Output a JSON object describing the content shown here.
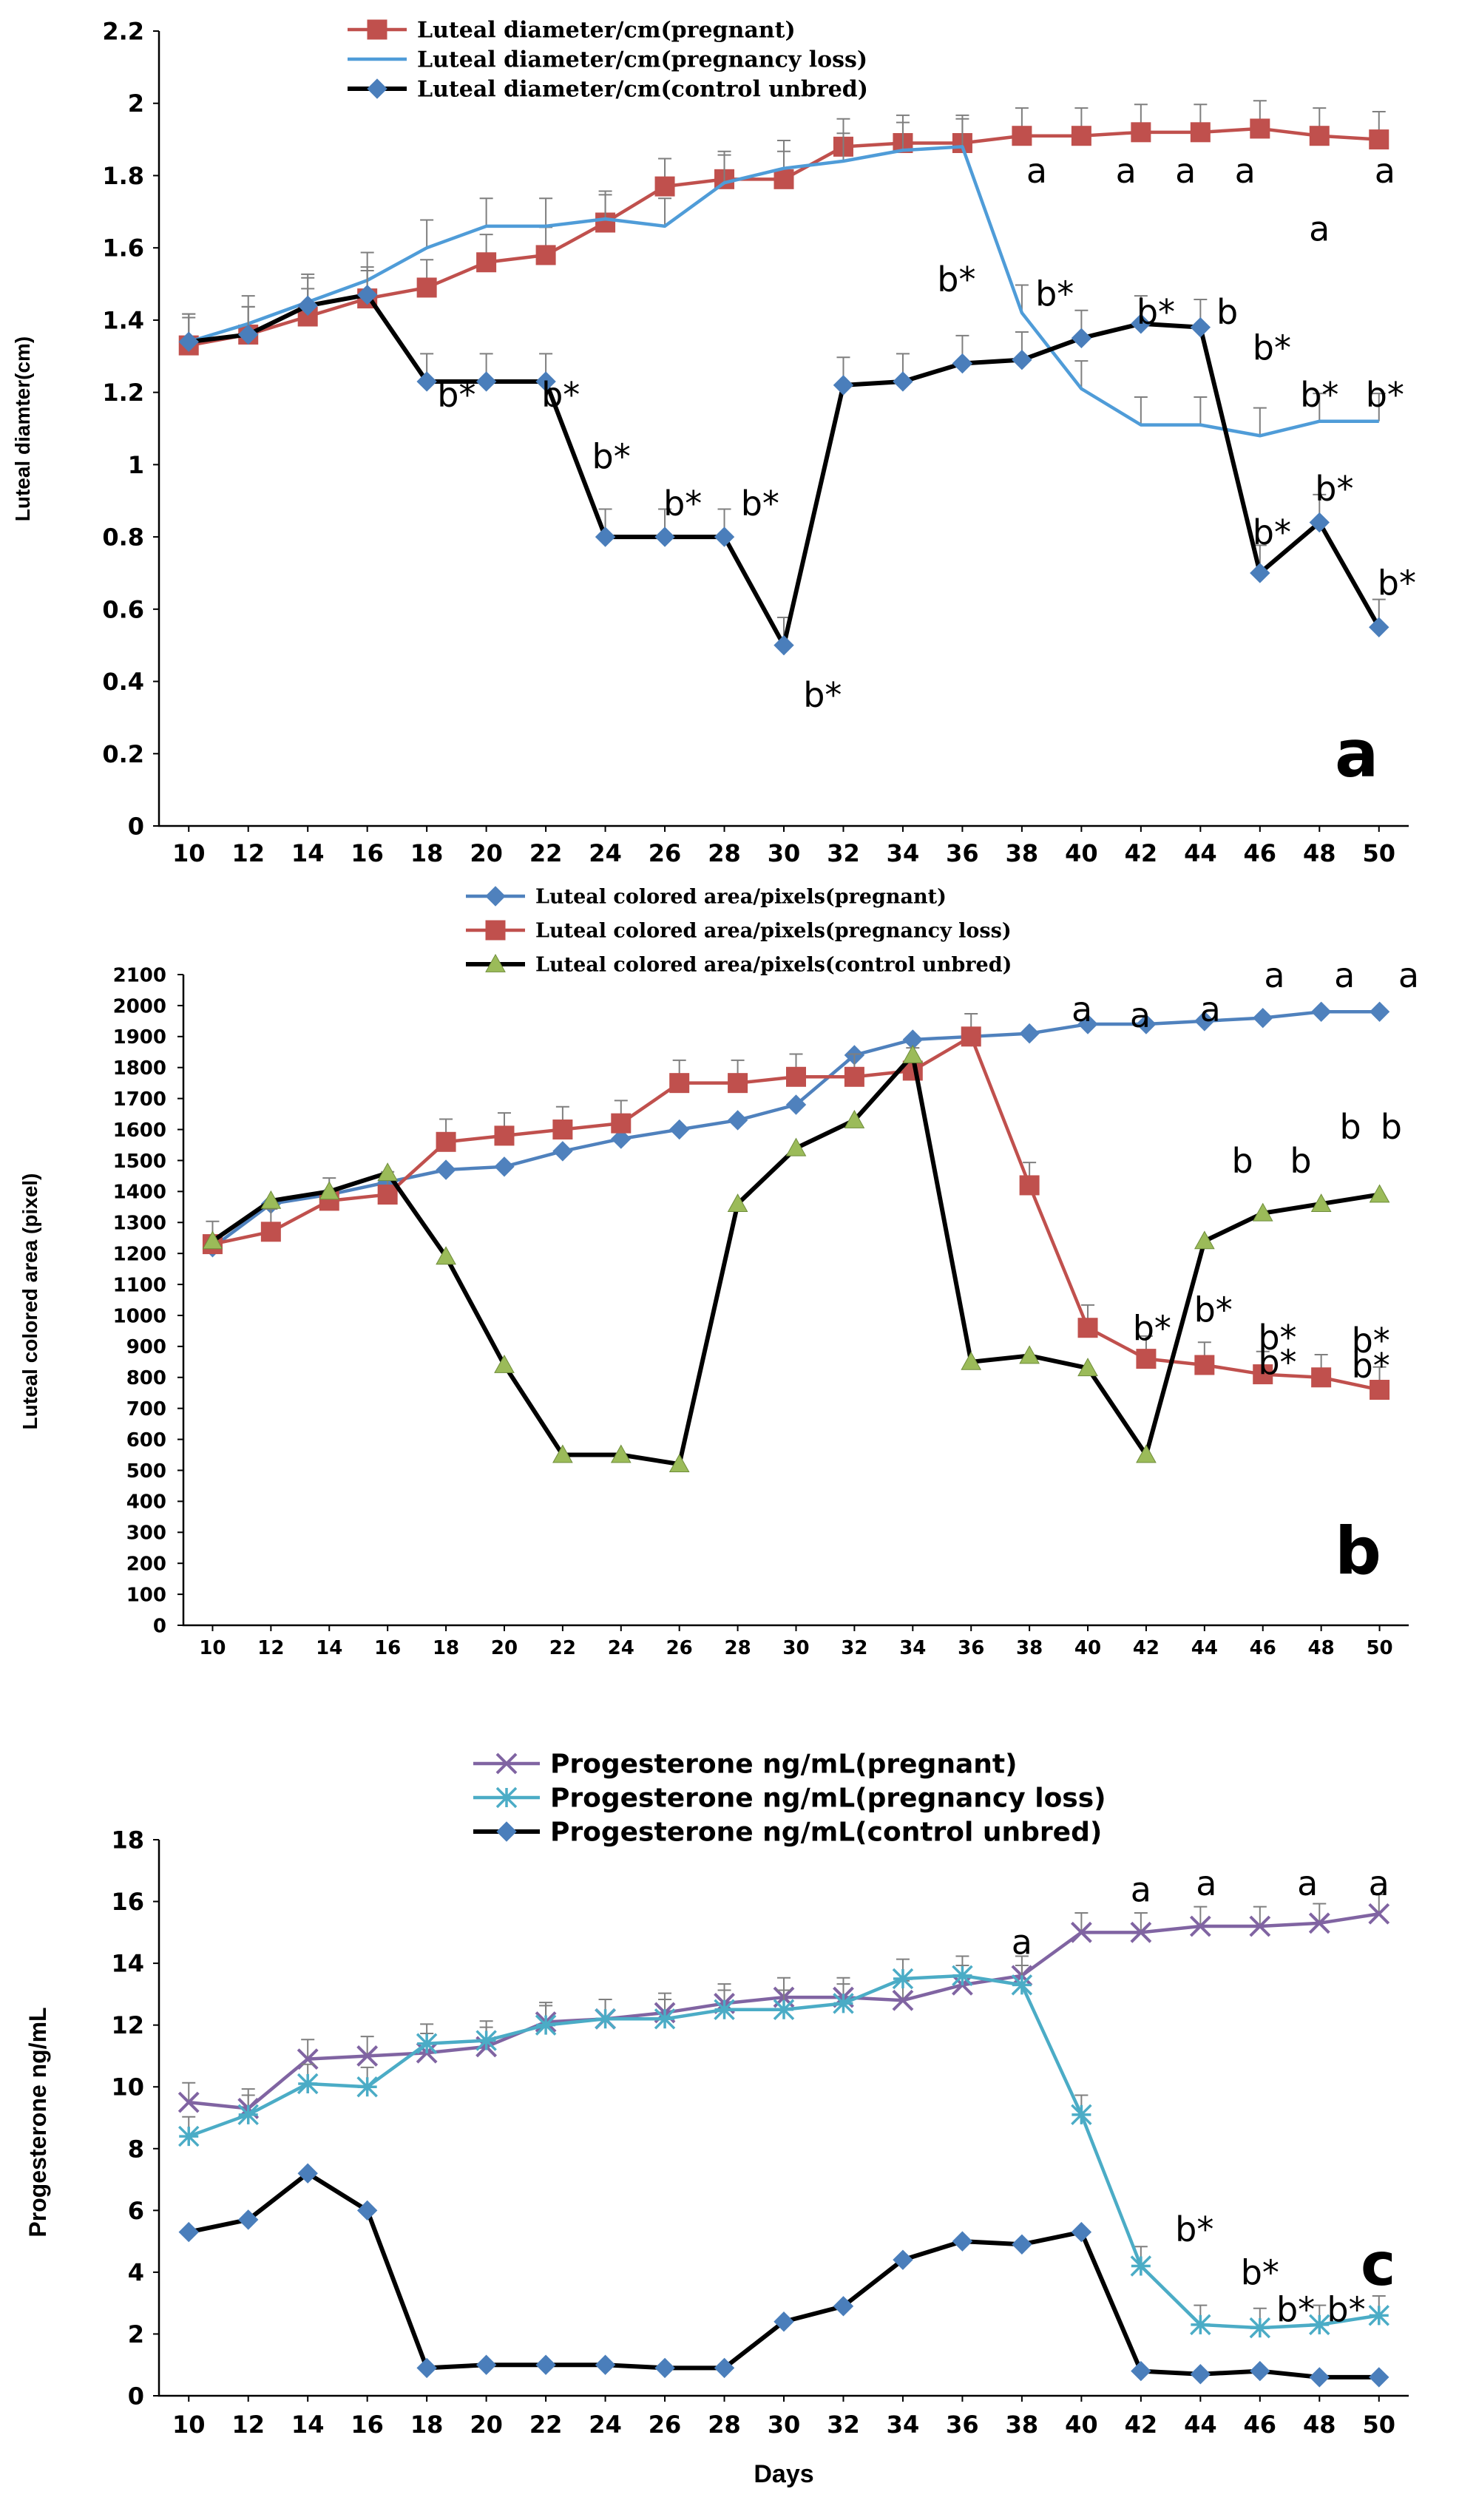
{
  "chart_data": [
    {
      "type": "line",
      "panel_label": "a",
      "ylabel": "Luteal diamter(cm)",
      "xlabel": "",
      "ylim": [
        0,
        2.2
      ],
      "ytick_step": 0.2,
      "ytick_labels": [
        "0",
        "0.2",
        "0.4",
        "0.6",
        "0.8",
        "1",
        "1.2",
        "1.4",
        "1.6",
        "1.8",
        "2",
        "2.2"
      ],
      "x": [
        10,
        12,
        14,
        16,
        18,
        20,
        22,
        24,
        26,
        28,
        30,
        32,
        34,
        36,
        38,
        40,
        42,
        44,
        46,
        48,
        50
      ],
      "grid": false,
      "legend_position": "top",
      "series": [
        {
          "name": "Luteal diameter/cm(pregnant)",
          "color": "#C0504D",
          "marker": "square",
          "error_bars": true,
          "values": [
            1.33,
            1.36,
            1.41,
            1.46,
            1.49,
            1.56,
            1.58,
            1.67,
            1.77,
            1.79,
            1.79,
            1.88,
            1.89,
            1.89,
            1.91,
            1.91,
            1.92,
            1.92,
            1.93,
            1.91,
            1.9
          ]
        },
        {
          "name": "Luteal diameter/cm(pregnancy loss)",
          "color": "#4F9CD8",
          "marker": "none",
          "error_bars": true,
          "values": [
            1.34,
            1.39,
            1.45,
            1.51,
            1.6,
            1.66,
            1.66,
            1.68,
            1.66,
            1.78,
            1.82,
            1.84,
            1.87,
            1.88,
            1.42,
            1.21,
            1.11,
            1.11,
            1.08,
            1.12,
            1.12
          ]
        },
        {
          "name": "Luteal diameter/cm(control unbred)",
          "color": "#000000",
          "marker": "diamond",
          "marker_color": "#4A7EBB",
          "error_bars": true,
          "values": [
            1.34,
            1.36,
            1.44,
            1.47,
            1.23,
            1.23,
            1.23,
            0.8,
            0.8,
            0.8,
            0.5,
            1.22,
            1.23,
            1.28,
            1.29,
            1.35,
            1.39,
            1.38,
            0.7,
            0.84,
            0.55
          ]
        }
      ],
      "annotations": [
        {
          "text": "b*",
          "x": 19,
          "y": 1.16
        },
        {
          "text": "b*",
          "x": 22.5,
          "y": 1.16
        },
        {
          "text": "b*",
          "x": 24.2,
          "y": 0.99
        },
        {
          "text": "b*",
          "x": 26.6,
          "y": 0.86
        },
        {
          "text": "b*",
          "x": 29.2,
          "y": 0.86
        },
        {
          "text": "b*",
          "x": 31.3,
          "y": 0.33
        },
        {
          "text": "b*",
          "x": 35.8,
          "y": 1.48
        },
        {
          "text": "b*",
          "x": 39.1,
          "y": 1.44
        },
        {
          "text": "a",
          "x": 38.5,
          "y": 1.78
        },
        {
          "text": "a",
          "x": 41.5,
          "y": 1.78
        },
        {
          "text": "a",
          "x": 43.5,
          "y": 1.78
        },
        {
          "text": "a",
          "x": 45.5,
          "y": 1.78
        },
        {
          "text": "a",
          "x": 48,
          "y": 1.62
        },
        {
          "text": "a",
          "x": 50.2,
          "y": 1.78
        },
        {
          "text": "b*",
          "x": 42.5,
          "y": 1.39
        },
        {
          "text": "b",
          "x": 44.9,
          "y": 1.39
        },
        {
          "text": "b*",
          "x": 46.4,
          "y": 1.29
        },
        {
          "text": "b*",
          "x": 48,
          "y": 1.16
        },
        {
          "text": "b*",
          "x": 50.2,
          "y": 1.16
        },
        {
          "text": "b*",
          "x": 46.4,
          "y": 0.78
        },
        {
          "text": "b*",
          "x": 48.5,
          "y": 0.9
        },
        {
          "text": "b*",
          "x": 50.6,
          "y": 0.64
        }
      ]
    },
    {
      "type": "line",
      "panel_label": "b",
      "ylabel": "Luteal colored area (pixel)",
      "xlabel": "",
      "ylim": [
        0,
        2100
      ],
      "ytick_step": 100,
      "ytick_labels": [
        "0",
        "100",
        "200",
        "300",
        "400",
        "500",
        "600",
        "700",
        "800",
        "900",
        "1000",
        "1100",
        "1200",
        "1300",
        "1400",
        "1500",
        "1600",
        "1700",
        "1800",
        "1900",
        "2000",
        "2100"
      ],
      "x": [
        10,
        12,
        14,
        16,
        18,
        20,
        22,
        24,
        26,
        28,
        30,
        32,
        34,
        36,
        38,
        40,
        42,
        44,
        46,
        48,
        50
      ],
      "grid": false,
      "legend_position": "top",
      "series": [
        {
          "name": "Luteal colored area/pixels(pregnant)",
          "color": "#4F81BD",
          "marker": "diamond",
          "error_bars": false,
          "values": [
            1220,
            1360,
            1390,
            1430,
            1470,
            1480,
            1530,
            1570,
            1600,
            1630,
            1680,
            1840,
            1890,
            1900,
            1910,
            1940,
            1940,
            1950,
            1960,
            1980,
            1980
          ]
        },
        {
          "name": "Luteal colored area/pixels(pregnancy loss)",
          "color": "#C0504D",
          "marker": "square",
          "error_bars": true,
          "values": [
            1230,
            1270,
            1370,
            1390,
            1560,
            1580,
            1600,
            1620,
            1750,
            1750,
            1770,
            1770,
            1790,
            1900,
            1420,
            960,
            860,
            840,
            810,
            800,
            760
          ]
        },
        {
          "name": "Luteal colored area/pixels(control unbred)",
          "color": "#000000",
          "marker": "triangle",
          "marker_color": "#9BBB59",
          "error_bars": false,
          "values": [
            1240,
            1370,
            1400,
            1460,
            1190,
            840,
            550,
            550,
            520,
            1360,
            1540,
            1630,
            1840,
            850,
            870,
            830,
            550,
            1240,
            1330,
            1360,
            1390
          ]
        }
      ],
      "annotations": [
        {
          "text": "a",
          "x": 39.8,
          "y": 1950
        },
        {
          "text": "a",
          "x": 41.8,
          "y": 1930
        },
        {
          "text": "a",
          "x": 44.2,
          "y": 1950
        },
        {
          "text": "a",
          "x": 46.4,
          "y": 2060
        },
        {
          "text": "a",
          "x": 48.8,
          "y": 2060
        },
        {
          "text": "a",
          "x": 51,
          "y": 2060
        },
        {
          "text": "b",
          "x": 45.3,
          "y": 1460
        },
        {
          "text": "b",
          "x": 47.3,
          "y": 1460
        },
        {
          "text": "b",
          "x": 49,
          "y": 1570
        },
        {
          "text": "b",
          "x": 50.4,
          "y": 1570
        },
        {
          "text": "b*",
          "x": 42.2,
          "y": 920
        },
        {
          "text": "b*",
          "x": 44.3,
          "y": 980
        },
        {
          "text": "b*",
          "x": 46.5,
          "y": 890
        },
        {
          "text": "b*",
          "x": 46.5,
          "y": 810
        },
        {
          "text": "b*",
          "x": 49.7,
          "y": 800
        },
        {
          "text": "b*",
          "x": 49.7,
          "y": 880
        }
      ]
    },
    {
      "type": "line",
      "panel_label": "c",
      "ylabel": "Progesterone ng/mL",
      "xlabel": "Days",
      "ylim": [
        0,
        18
      ],
      "ytick_step": 2,
      "ytick_labels": [
        "0",
        "2",
        "4",
        "6",
        "8",
        "10",
        "12",
        "14",
        "16",
        "18"
      ],
      "x": [
        10,
        12,
        14,
        16,
        18,
        20,
        22,
        24,
        26,
        28,
        30,
        32,
        34,
        36,
        38,
        40,
        42,
        44,
        46,
        48,
        50
      ],
      "grid": false,
      "legend_position": "top",
      "series": [
        {
          "name": "Progesterone ng/mL(pregnant)",
          "color": "#8064A2",
          "marker": "x",
          "error_bars": true,
          "values": [
            9.5,
            9.3,
            10.9,
            11.0,
            11.1,
            11.3,
            12.1,
            12.2,
            12.4,
            12.7,
            12.9,
            12.9,
            12.8,
            13.3,
            13.6,
            15.0,
            15.0,
            15.2,
            15.2,
            15.3,
            15.6
          ]
        },
        {
          "name": "Progesterone ng/mL(pregnancy loss)",
          "color": "#4BACC6",
          "marker": "star",
          "error_bars": true,
          "values": [
            8.4,
            9.1,
            10.1,
            10.0,
            11.4,
            11.5,
            12.0,
            12.2,
            12.2,
            12.5,
            12.5,
            12.7,
            13.5,
            13.6,
            13.3,
            9.1,
            4.2,
            2.3,
            2.2,
            2.3,
            2.6
          ]
        },
        {
          "name": "Progesterone ng/mL(control unbred)",
          "color": "#000000",
          "marker": "diamond",
          "marker_color": "#4A7EBB",
          "error_bars": false,
          "values": [
            5.3,
            5.7,
            7.2,
            6.0,
            0.9,
            1.0,
            1.0,
            1.0,
            0.9,
            0.9,
            2.4,
            2.9,
            4.4,
            5.0,
            4.9,
            5.3,
            0.8,
            0.7,
            0.8,
            0.6,
            0.6
          ]
        }
      ],
      "annotations": [
        {
          "text": "a",
          "x": 38,
          "y": 14.3
        },
        {
          "text": "a",
          "x": 42,
          "y": 16.0
        },
        {
          "text": "a",
          "x": 44.2,
          "y": 16.2
        },
        {
          "text": "a",
          "x": 47.6,
          "y": 16.2
        },
        {
          "text": "a",
          "x": 50,
          "y": 16.2
        },
        {
          "text": "b*",
          "x": 43.8,
          "y": 5.0
        },
        {
          "text": "b*",
          "x": 46,
          "y": 3.6
        },
        {
          "text": "b*",
          "x": 47.2,
          "y": 2.4
        },
        {
          "text": "b*",
          "x": 48.9,
          "y": 2.4
        }
      ]
    }
  ]
}
